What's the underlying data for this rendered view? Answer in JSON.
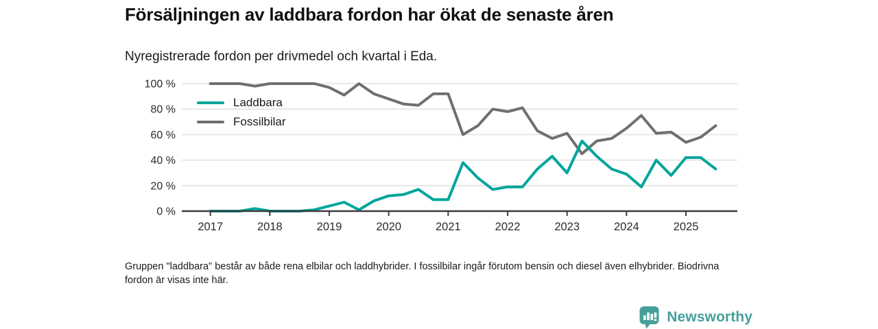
{
  "header": {
    "title": "Försäljningen av laddbara fordon har ökat de senaste åren",
    "subtitle": "Nyregistrerade fordon per drivmedel och kvartal i Eda."
  },
  "chart_data": {
    "type": "line",
    "x": [
      "2017Q1",
      "2017Q2",
      "2017Q3",
      "2017Q4",
      "2018Q1",
      "2018Q2",
      "2018Q3",
      "2018Q4",
      "2019Q1",
      "2019Q2",
      "2019Q3",
      "2019Q4",
      "2020Q1",
      "2020Q2",
      "2020Q3",
      "2020Q4",
      "2021Q1",
      "2021Q2",
      "2021Q3",
      "2021Q4",
      "2022Q1",
      "2022Q2",
      "2022Q3",
      "2022Q4",
      "2023Q1",
      "2023Q2",
      "2023Q3",
      "2023Q4",
      "2024Q1",
      "2024Q2",
      "2024Q3",
      "2024Q4",
      "2025Q1",
      "2025Q2",
      "2025Q3"
    ],
    "series": [
      {
        "name": "Laddbara",
        "color": "#00a59b",
        "values": [
          0,
          0,
          0,
          2,
          0,
          0,
          0,
          1,
          4,
          7,
          1,
          8,
          12,
          13,
          17,
          9,
          9,
          38,
          26,
          17,
          19,
          19,
          33,
          43,
          30,
          55,
          43,
          33,
          29,
          19,
          40,
          28,
          42,
          42,
          33
        ]
      },
      {
        "name": "Fossilbilar",
        "color": "#6f6f6f",
        "values": [
          100,
          100,
          100,
          98,
          100,
          100,
          100,
          100,
          97,
          91,
          100,
          92,
          88,
          84,
          83,
          92,
          92,
          60,
          67,
          80,
          78,
          81,
          63,
          57,
          61,
          45,
          55,
          57,
          65,
          75,
          61,
          62,
          54,
          58,
          67
        ]
      }
    ],
    "title": "Försäljningen av laddbara fordon har ökat de senaste åren",
    "xlabel": "",
    "ylabel": "",
    "unit": "%",
    "ylim": [
      0,
      100
    ],
    "grid": true,
    "legend_position": "top-left-inside",
    "y_ticks": [
      "100 %",
      "80 %",
      "60 %",
      "40 %",
      "20 %",
      "0 %"
    ],
    "y_tick_values": [
      100,
      80,
      60,
      40,
      20,
      0
    ],
    "x_ticks": [
      "2017",
      "2018",
      "2019",
      "2020",
      "2021",
      "2022",
      "2023",
      "2024",
      "2025"
    ]
  },
  "footnote": {
    "text": "Gruppen \"laddbara\" består av både rena elbilar och laddhybrider. I fossilbilar ingår förutom bensin och diesel även elhybrider. Biodrivna fordon är visas inte här."
  },
  "branding": {
    "name": "Newsworthy",
    "color": "#45a09a",
    "icon": "bar-chart-pin-icon"
  },
  "colors": {
    "axis": "#3c3c3c",
    "gridline": "#e2e2e2",
    "tick_label": "#2b2b2b"
  }
}
